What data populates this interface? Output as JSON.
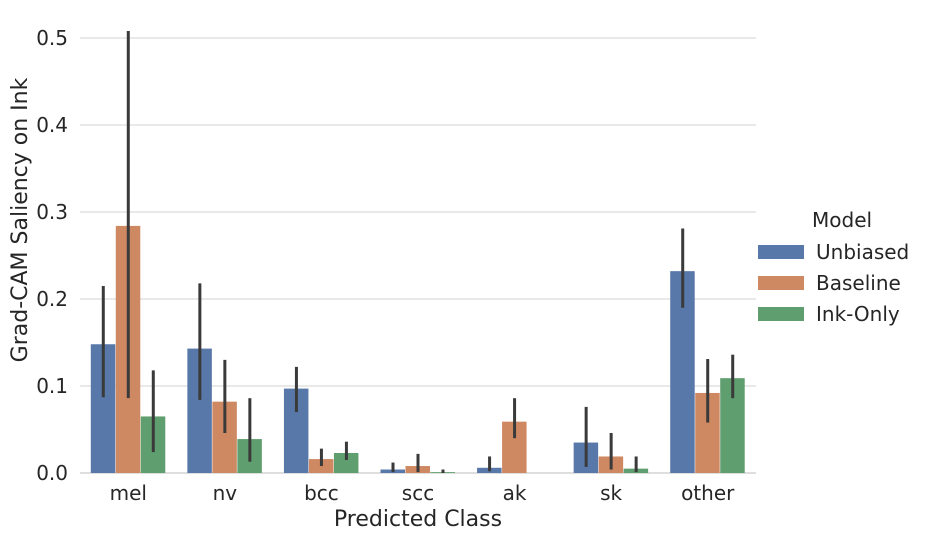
{
  "chart_data": {
    "type": "bar",
    "title": "",
    "xlabel": "Predicted Class",
    "ylabel": "Grad-CAM Saliency on Ink",
    "categories": [
      "mel",
      "nv",
      "bcc",
      "scc",
      "ak",
      "sk",
      "other"
    ],
    "yticks": [
      0.0,
      0.1,
      0.2,
      0.3,
      0.4,
      0.5
    ],
    "ytick_labels": [
      "0.0",
      "0.1",
      "0.2",
      "0.3",
      "0.4",
      "0.5"
    ],
    "ylim": [
      0.0,
      0.532
    ],
    "grid": true,
    "legend": {
      "title": "Model",
      "position": "right"
    },
    "colors": {
      "grid": "#d3d3d3",
      "axis_line": "#c9c9c9",
      "text": "#262626",
      "error_bar": "#3a3a3a"
    },
    "series": [
      {
        "name": "Unbiased",
        "color": "#5878a9",
        "values": [
          0.148,
          0.143,
          0.097,
          0.004,
          0.006,
          0.035,
          0.232
        ],
        "err_lo": [
          0.087,
          0.084,
          0.07,
          0.001,
          0.002,
          0.007,
          0.19
        ],
        "err_hi": [
          0.215,
          0.218,
          0.122,
          0.012,
          0.019,
          0.076,
          0.281
        ]
      },
      {
        "name": "Baseline",
        "color": "#ce8963",
        "values": [
          0.284,
          0.082,
          0.016,
          0.008,
          0.059,
          0.019,
          0.092
        ],
        "err_lo": [
          0.086,
          0.046,
          0.008,
          0.001,
          0.04,
          0.004,
          0.058
        ],
        "err_hi": [
          0.508,
          0.13,
          0.028,
          0.022,
          0.086,
          0.046,
          0.131
        ]
      },
      {
        "name": "Ink-Only",
        "color": "#5f9e6e",
        "values": [
          0.065,
          0.039,
          0.023,
          0.001,
          0.0,
          0.005,
          0.109
        ],
        "err_lo": [
          0.024,
          0.013,
          0.015,
          0.0,
          0.0,
          0.001,
          0.086
        ],
        "err_hi": [
          0.118,
          0.086,
          0.036,
          0.004,
          0.0,
          0.019,
          0.136
        ]
      }
    ]
  }
}
